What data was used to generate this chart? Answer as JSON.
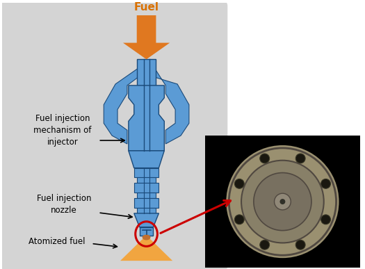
{
  "bg_color": "#d4d4d4",
  "fig_bg": "#ffffff",
  "fuel_label": "Fuel",
  "fuel_label_color": "#d97000",
  "label1": "Fuel injection\nmechanism of\ninjector",
  "label2": "Fuel injection\nnozzle",
  "label3": "Atomized fuel",
  "blue_body_color": "#5b9bd5",
  "blue_mid": "#4a85c0",
  "blue_dark": "#1a4a7a",
  "orange_arrow_color": "#e07820",
  "orange_spray_color": "#f5a030",
  "red_circle_color": "#cc0000",
  "red_arrow_color": "#cc0000",
  "nozzle_photo_bg": "#000000",
  "grey_outer": "#b8b8a0",
  "grey_mid": "#a0997a",
  "grey_inner": "#8a8268",
  "grey_center": "#706858"
}
